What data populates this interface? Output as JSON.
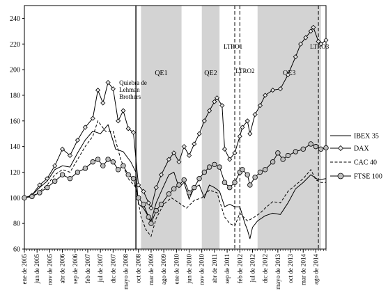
{
  "chart_data": {
    "type": "line",
    "title": "",
    "xlabel": "",
    "ylabel": "",
    "x_range": [
      "2005-01",
      "2014-12"
    ],
    "ylim": [
      60,
      250
    ],
    "y_ticks": [
      60,
      80,
      100,
      120,
      140,
      160,
      180,
      200,
      220,
      240
    ],
    "x_tick_labels": [
      {
        "x": "2005-01",
        "label": "ene de 2005"
      },
      {
        "x": "2005-06",
        "label": "jun de 2005"
      },
      {
        "x": "2005-11",
        "label": "nov de 2005"
      },
      {
        "x": "2006-04",
        "label": "abr de 2006"
      },
      {
        "x": "2006-09",
        "label": "sep de 2006"
      },
      {
        "x": "2007-02",
        "label": "feb de 2007"
      },
      {
        "x": "2007-07",
        "label": "jul de 2007"
      },
      {
        "x": "2007-12",
        "label": "dic de 2007"
      },
      {
        "x": "2008-05",
        "label": "mayo de 2008"
      },
      {
        "x": "2008-10",
        "label": "oct de 2008"
      },
      {
        "x": "2009-03",
        "label": "mar de 2009"
      },
      {
        "x": "2009-08",
        "label": "ago de 2009"
      },
      {
        "x": "2010-01",
        "label": "ene de 2010"
      },
      {
        "x": "2010-06",
        "label": "jun de 2010"
      },
      {
        "x": "2010-11",
        "label": "nov de 2010"
      },
      {
        "x": "2011-04",
        "label": "abr de 2011"
      },
      {
        "x": "2011-09",
        "label": "sep de 2011"
      },
      {
        "x": "2012-02",
        "label": "feb de 2012"
      },
      {
        "x": "2012-07",
        "label": "jul de 2012"
      },
      {
        "x": "2012-12",
        "label": "dic de 2012"
      },
      {
        "x": "2013-05",
        "label": "mayo de 2013"
      },
      {
        "x": "2013-10",
        "label": "oct de 2013"
      },
      {
        "x": "2014-03",
        "label": "mar de 2014"
      },
      {
        "x": "2014-08",
        "label": "ago de 2014"
      }
    ],
    "shaded_periods": [
      {
        "label": "QE1",
        "start": "2008-11",
        "end": "2010-03"
      },
      {
        "label": "QE2",
        "start": "2010-11",
        "end": "2011-06"
      },
      {
        "label": "QE3",
        "start": "2012-09",
        "end": "2014-10"
      }
    ],
    "event_lines": [
      {
        "label": "Quiebra de Lehman Brothers",
        "x": "2008-09",
        "style": "solid"
      },
      {
        "label": "LTRO1",
        "x": "2011-12",
        "style": "dashed"
      },
      {
        "label": "LTRO2",
        "x": "2012-02",
        "style": "dashed"
      },
      {
        "label": "LTRO3",
        "x": "2014-09",
        "style": "dashed"
      }
    ],
    "legend_position": "right",
    "series": [
      {
        "name": "IBEX 35",
        "style": "solid",
        "points": [
          [
            "2005-01",
            100
          ],
          [
            "2005-04",
            102
          ],
          [
            "2005-07",
            108
          ],
          [
            "2005-10",
            113
          ],
          [
            "2006-01",
            122
          ],
          [
            "2006-04",
            125
          ],
          [
            "2006-07",
            124
          ],
          [
            "2006-10",
            135
          ],
          [
            "2007-01",
            145
          ],
          [
            "2007-04",
            152
          ],
          [
            "2007-07",
            150
          ],
          [
            "2007-10",
            157
          ],
          [
            "2008-01",
            138
          ],
          [
            "2008-04",
            136
          ],
          [
            "2008-07",
            128
          ],
          [
            "2008-09",
            120
          ],
          [
            "2008-10",
            95
          ],
          [
            "2008-12",
            92
          ],
          [
            "2009-02",
            85
          ],
          [
            "2009-03",
            82
          ],
          [
            "2009-05",
            96
          ],
          [
            "2009-07",
            105
          ],
          [
            "2009-10",
            118
          ],
          [
            "2009-12",
            120
          ],
          [
            "2010-02",
            108
          ],
          [
            "2010-04",
            112
          ],
          [
            "2010-06",
            99
          ],
          [
            "2010-08",
            108
          ],
          [
            "2010-10",
            110
          ],
          [
            "2010-12",
            100
          ],
          [
            "2011-02",
            110
          ],
          [
            "2011-04",
            108
          ],
          [
            "2011-06",
            105
          ],
          [
            "2011-08",
            93
          ],
          [
            "2011-10",
            95
          ],
          [
            "2011-12",
            93
          ],
          [
            "2012-02",
            93
          ],
          [
            "2012-04",
            80
          ],
          [
            "2012-05",
            75
          ],
          [
            "2012-06",
            68
          ],
          [
            "2012-07",
            77
          ],
          [
            "2012-09",
            82
          ],
          [
            "2012-12",
            86
          ],
          [
            "2013-03",
            88
          ],
          [
            "2013-06",
            87
          ],
          [
            "2013-09",
            96
          ],
          [
            "2013-12",
            107
          ],
          [
            "2014-03",
            112
          ],
          [
            "2014-06",
            118
          ],
          [
            "2014-09",
            114
          ],
          [
            "2014-12",
            115
          ]
        ]
      },
      {
        "name": "DAX",
        "style": "diamond",
        "points": [
          [
            "2005-01",
            100
          ],
          [
            "2005-04",
            102
          ],
          [
            "2005-07",
            110
          ],
          [
            "2005-10",
            115
          ],
          [
            "2006-01",
            125
          ],
          [
            "2006-04",
            138
          ],
          [
            "2006-07",
            133
          ],
          [
            "2006-10",
            145
          ],
          [
            "2007-01",
            155
          ],
          [
            "2007-04",
            162
          ],
          [
            "2007-06",
            184
          ],
          [
            "2007-08",
            174
          ],
          [
            "2007-10",
            190
          ],
          [
            "2007-12",
            185
          ],
          [
            "2008-02",
            160
          ],
          [
            "2008-04",
            168
          ],
          [
            "2008-06",
            154
          ],
          [
            "2008-08",
            151
          ],
          [
            "2008-10",
            110
          ],
          [
            "2008-12",
            105
          ],
          [
            "2009-02",
            96
          ],
          [
            "2009-03",
            92
          ],
          [
            "2009-05",
            108
          ],
          [
            "2009-07",
            118
          ],
          [
            "2009-10",
            130
          ],
          [
            "2009-12",
            135
          ],
          [
            "2010-02",
            128
          ],
          [
            "2010-04",
            140
          ],
          [
            "2010-06",
            133
          ],
          [
            "2010-08",
            142
          ],
          [
            "2010-10",
            150
          ],
          [
            "2010-12",
            160
          ],
          [
            "2011-02",
            168
          ],
          [
            "2011-04",
            175
          ],
          [
            "2011-05",
            178
          ],
          [
            "2011-07",
            172
          ],
          [
            "2011-08",
            138
          ],
          [
            "2011-10",
            130
          ],
          [
            "2011-12",
            135
          ],
          [
            "2012-02",
            148
          ],
          [
            "2012-03",
            155
          ],
          [
            "2012-05",
            160
          ],
          [
            "2012-06",
            150
          ],
          [
            "2012-08",
            165
          ],
          [
            "2012-10",
            172
          ],
          [
            "2012-12",
            180
          ],
          [
            "2013-03",
            184
          ],
          [
            "2013-06",
            185
          ],
          [
            "2013-09",
            196
          ],
          [
            "2013-12",
            210
          ],
          [
            "2014-02",
            220
          ],
          [
            "2014-04",
            225
          ],
          [
            "2014-06",
            230
          ],
          [
            "2014-07",
            233
          ],
          [
            "2014-09",
            222
          ],
          [
            "2014-10",
            220
          ],
          [
            "2014-12",
            223
          ]
        ]
      },
      {
        "name": "CAC 40",
        "style": "dashed",
        "points": [
          [
            "2005-01",
            100
          ],
          [
            "2005-04",
            101
          ],
          [
            "2005-07",
            105
          ],
          [
            "2005-10",
            110
          ],
          [
            "2006-01",
            118
          ],
          [
            "2006-04",
            122
          ],
          [
            "2006-07",
            120
          ],
          [
            "2006-10",
            130
          ],
          [
            "2007-01",
            140
          ],
          [
            "2007-04",
            148
          ],
          [
            "2007-06",
            160
          ],
          [
            "2007-09",
            152
          ],
          [
            "2007-12",
            152
          ],
          [
            "2008-03",
            130
          ],
          [
            "2008-06",
            115
          ],
          [
            "2008-09",
            108
          ],
          [
            "2008-11",
            85
          ],
          [
            "2009-01",
            75
          ],
          [
            "2009-03",
            70
          ],
          [
            "2009-05",
            84
          ],
          [
            "2009-08",
            95
          ],
          [
            "2009-11",
            100
          ],
          [
            "2010-02",
            96
          ],
          [
            "2010-05",
            92
          ],
          [
            "2010-08",
            98
          ],
          [
            "2010-11",
            100
          ],
          [
            "2011-02",
            106
          ],
          [
            "2011-05",
            104
          ],
          [
            "2011-08",
            85
          ],
          [
            "2011-10",
            80
          ],
          [
            "2011-12",
            78
          ],
          [
            "2012-02",
            88
          ],
          [
            "2012-05",
            82
          ],
          [
            "2012-07",
            84
          ],
          [
            "2012-10",
            88
          ],
          [
            "2012-12",
            92
          ],
          [
            "2013-03",
            97
          ],
          [
            "2013-06",
            96
          ],
          [
            "2013-09",
            105
          ],
          [
            "2013-12",
            110
          ],
          [
            "2014-03",
            115
          ],
          [
            "2014-06",
            122
          ],
          [
            "2014-08",
            114
          ],
          [
            "2014-10",
            112
          ],
          [
            "2014-12",
            112
          ]
        ]
      },
      {
        "name": "FTSE 100",
        "style": "circle",
        "points": [
          [
            "2005-01",
            100
          ],
          [
            "2005-04",
            101
          ],
          [
            "2005-07",
            104
          ],
          [
            "2005-10",
            108
          ],
          [
            "2006-01",
            113
          ],
          [
            "2006-04",
            118
          ],
          [
            "2006-07",
            115
          ],
          [
            "2006-10",
            120
          ],
          [
            "2007-01",
            123
          ],
          [
            "2007-04",
            128
          ],
          [
            "2007-06",
            130
          ],
          [
            "2007-08",
            125
          ],
          [
            "2007-10",
            130
          ],
          [
            "2007-12",
            128
          ],
          [
            "2008-02",
            122
          ],
          [
            "2008-04",
            125
          ],
          [
            "2008-06",
            118
          ],
          [
            "2008-08",
            115
          ],
          [
            "2008-10",
            100
          ],
          [
            "2008-12",
            95
          ],
          [
            "2009-02",
            85
          ],
          [
            "2009-03",
            80
          ],
          [
            "2009-05",
            90
          ],
          [
            "2009-07",
            95
          ],
          [
            "2009-10",
            103
          ],
          [
            "2009-12",
            107
          ],
          [
            "2010-02",
            110
          ],
          [
            "2010-04",
            114
          ],
          [
            "2010-06",
            104
          ],
          [
            "2010-08",
            108
          ],
          [
            "2010-10",
            115
          ],
          [
            "2010-12",
            120
          ],
          [
            "2011-02",
            124
          ],
          [
            "2011-04",
            126
          ],
          [
            "2011-06",
            124
          ],
          [
            "2011-08",
            112
          ],
          [
            "2011-10",
            108
          ],
          [
            "2011-12",
            112
          ],
          [
            "2012-02",
            120
          ],
          [
            "2012-03",
            122
          ],
          [
            "2012-05",
            118
          ],
          [
            "2012-06",
            110
          ],
          [
            "2012-08",
            116
          ],
          [
            "2012-10",
            120
          ],
          [
            "2012-12",
            122
          ],
          [
            "2013-03",
            128
          ],
          [
            "2013-05",
            135
          ],
          [
            "2013-07",
            130
          ],
          [
            "2013-09",
            133
          ],
          [
            "2013-12",
            136
          ],
          [
            "2014-03",
            138
          ],
          [
            "2014-06",
            142
          ],
          [
            "2014-08",
            140
          ],
          [
            "2014-10",
            138
          ],
          [
            "2014-12",
            139
          ]
        ]
      }
    ]
  }
}
